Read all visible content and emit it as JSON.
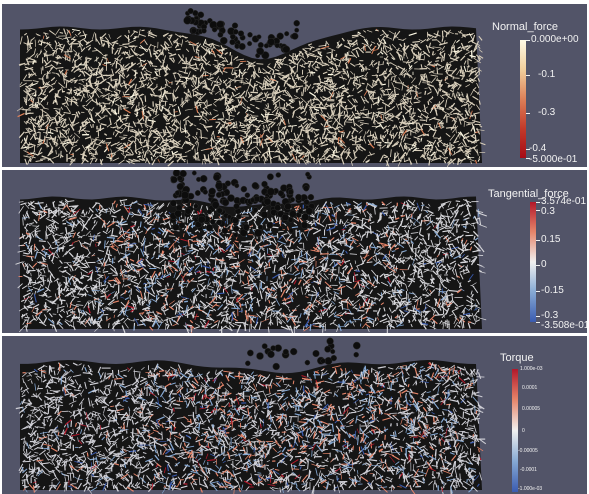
{
  "panels": [
    {
      "title": "Normal_force",
      "ticks": [
        "0.000e+00",
        "-0.1",
        "-0.3",
        "-0.4",
        "-5.000e-01"
      ],
      "colors": [
        "#fffbe6",
        "#f1cf9c",
        "#dd8058",
        "#c23a2a",
        "#a70b16"
      ],
      "base": "#d9cfbb",
      "disturb": 0.0
    },
    {
      "title": "Tangential_force",
      "ticks": [
        "3.574e-01",
        "0.3",
        "0.15",
        "0",
        "-0.15",
        "-0.3",
        "-3.508e-01"
      ],
      "colors": [
        "#b2182b",
        "#e6856a",
        "#f0f0f0",
        "#86a9d4",
        "#3a5bb0"
      ],
      "base": "#d6d6da",
      "disturb": 0.45
    },
    {
      "title": "Torque",
      "ticks": [
        "1.000e-03",
        "0.0001",
        "0.00005",
        "0",
        "-0.00005",
        "-0.0001",
        "-1.000e-03"
      ],
      "colors": [
        "#b2182b",
        "#e6856a",
        "#f0f0f0",
        "#86a9d4",
        "#3a5bb0"
      ],
      "base": "#cfcfd6",
      "disturb": 0.6
    }
  ]
}
